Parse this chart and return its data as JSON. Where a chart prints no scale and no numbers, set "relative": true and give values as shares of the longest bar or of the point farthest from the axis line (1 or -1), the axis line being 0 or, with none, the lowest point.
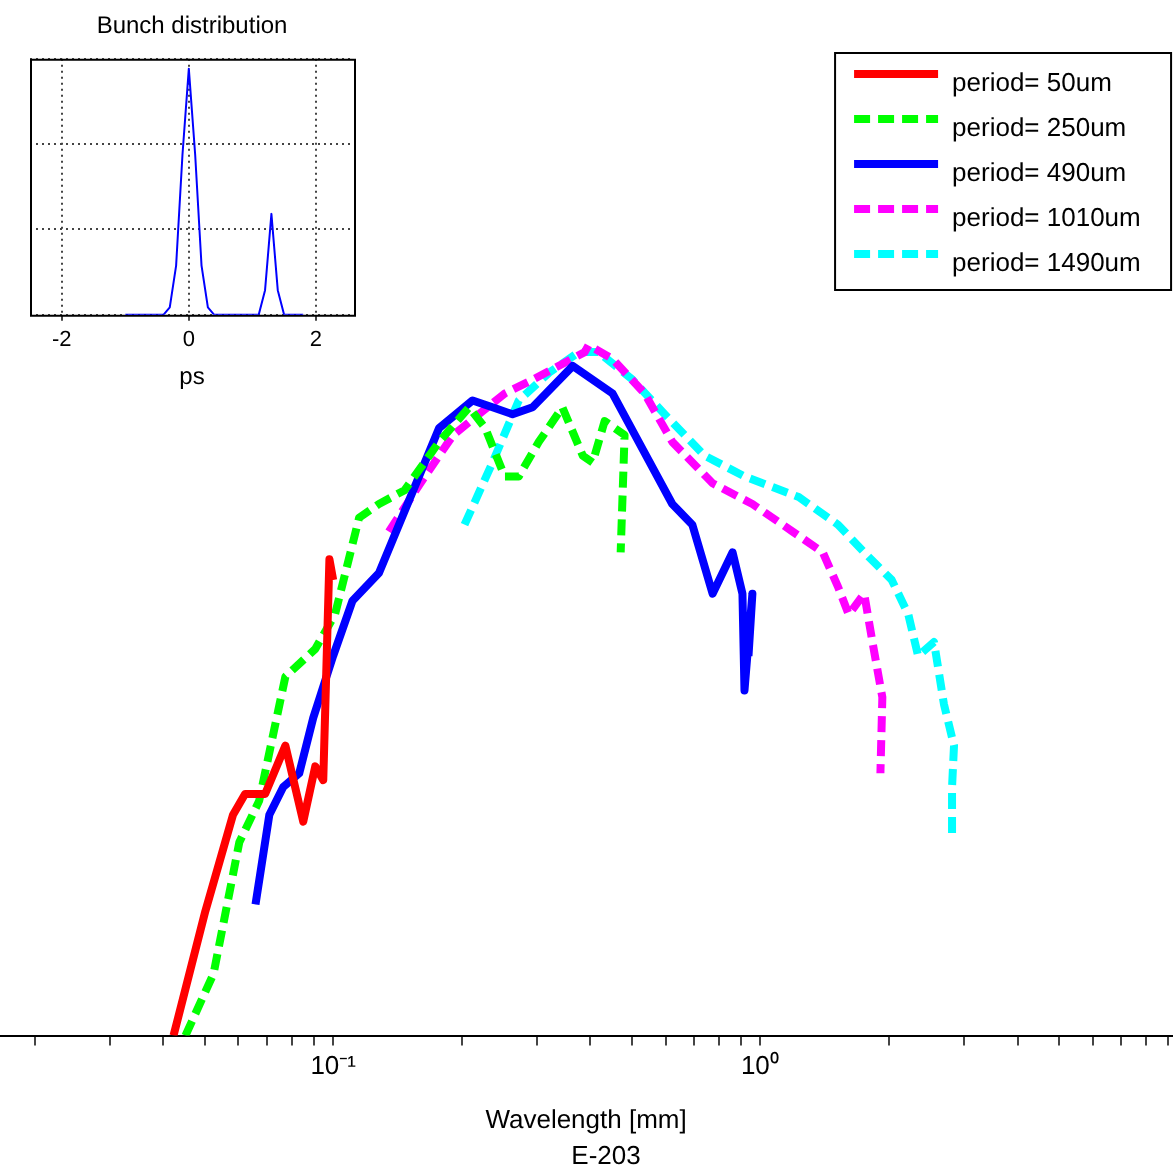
{
  "chart_data": [
    {
      "type": "line",
      "title": "Bunch distribution",
      "xlabel": "ps",
      "relative": true,
      "grid": true,
      "xlim": [
        -2.5,
        2.6
      ],
      "xticks": [
        -2,
        0,
        2
      ],
      "x": [
        -1,
        -0.4,
        -0.3,
        -0.2,
        -0.1,
        0,
        0.1,
        0.2,
        0.3,
        0.4,
        1.1,
        1.2,
        1.3,
        1.4,
        1.5,
        1.8
      ],
      "series": [
        {
          "color": "#0000ff",
          "values": [
            0,
            0,
            0.03,
            0.2,
            0.65,
            1,
            0.65,
            0.2,
            0.03,
            0,
            0,
            0.1,
            0.41,
            0.1,
            0,
            0
          ]
        }
      ]
    },
    {
      "type": "line",
      "xlabel": "Wavelength [mm]",
      "annotations": [
        "E-203"
      ],
      "log": "x",
      "relative": true,
      "legend": "top right",
      "xlim": [
        0.0166,
        9.2
      ],
      "xticks": [
        {
          "value": 0.02,
          "label": null
        },
        {
          "value": 0.03,
          "label": null
        },
        {
          "value": 0.04,
          "label": null
        },
        {
          "value": 0.05,
          "label": null
        },
        {
          "value": 0.06,
          "label": null
        },
        {
          "value": 0.07,
          "label": null
        },
        {
          "value": 0.08,
          "label": null
        },
        {
          "value": 0.09,
          "label": null
        },
        {
          "value": 0.1,
          "label": "10⁻¹"
        },
        {
          "value": 0.2,
          "label": null
        },
        {
          "value": 0.3,
          "label": null
        },
        {
          "value": 0.4,
          "label": null
        },
        {
          "value": 0.5,
          "label": null
        },
        {
          "value": 0.6,
          "label": null
        },
        {
          "value": 0.7,
          "label": null
        },
        {
          "value": 0.8,
          "label": null
        },
        {
          "value": 0.9,
          "label": null
        },
        {
          "value": 1,
          "label": "10⁰"
        },
        {
          "value": 2,
          "label": null
        },
        {
          "value": 3,
          "label": null
        },
        {
          "value": 4,
          "label": null
        },
        {
          "value": 5,
          "label": null
        },
        {
          "value": 6,
          "label": null
        },
        {
          "value": 7,
          "label": null
        },
        {
          "value": 8,
          "label": null
        },
        {
          "value": 9,
          "label": null
        }
      ],
      "series": [
        {
          "name": "period= 50um",
          "color": "#ff0000",
          "line_style": "solid",
          "x": [
            0.0423,
            0.0502,
            0.0583,
            0.0622,
            0.0693,
            0.0773,
            0.0851,
            0.0908,
            0.0948,
            0.098,
            0.1
          ],
          "values": [
            0,
            0.18,
            0.32,
            0.35,
            0.35,
            0.42,
            0.31,
            0.39,
            0.37,
            0.69,
            0.66
          ]
        },
        {
          "name": "period= 250um",
          "color": "#00ff00",
          "line_style": "dashed",
          "x": [
            0.0451,
            0.0525,
            0.0603,
            0.0671,
            0.0773,
            0.0908,
            0.101,
            0.115,
            0.128,
            0.147,
            0.177,
            0.208,
            0.227,
            0.252,
            0.272,
            0.303,
            0.344,
            0.384,
            0.405,
            0.432,
            0.481,
            0.471
          ],
          "values": [
            0,
            0.09,
            0.28,
            0.34,
            0.52,
            0.56,
            0.61,
            0.75,
            0.77,
            0.79,
            0.86,
            0.91,
            0.88,
            0.81,
            0.81,
            0.86,
            0.91,
            0.84,
            0.83,
            0.89,
            0.87,
            0.7
          ]
        },
        {
          "name": "period= 490um",
          "color": "#0000ff",
          "line_style": "solid",
          "x": [
            0.0658,
            0.0709,
            0.0764,
            0.0833,
            0.0898,
            0.1,
            0.111,
            0.128,
            0.154,
            0.177,
            0.212,
            0.236,
            0.263,
            0.293,
            0.364,
            0.451,
            0.519,
            0.622,
            0.693,
            0.773,
            0.861,
            0.908,
            0.918,
            0.958,
            0.938
          ],
          "values": [
            0.19,
            0.32,
            0.36,
            0.38,
            0.46,
            0.55,
            0.63,
            0.67,
            0.79,
            0.88,
            0.92,
            0.91,
            0.9,
            0.91,
            0.97,
            0.93,
            0.86,
            0.77,
            0.74,
            0.64,
            0.7,
            0.64,
            0.5,
            0.64,
            0.55
          ]
        },
        {
          "name": "period= 1010um",
          "color": "#ff00ff",
          "line_style": "dashed",
          "x": [
            0.135,
            0.164,
            0.191,
            0.252,
            0.293,
            0.388,
            0.396,
            0.451,
            0.536,
            0.622,
            0.773,
            0.958,
            1.19,
            1.4,
            1.52,
            1.61,
            1.75,
            1.83,
            1.93,
            1.91
          ],
          "values": [
            0.73,
            0.81,
            0.87,
            0.93,
            0.95,
            0.99,
            1,
            0.98,
            0.93,
            0.86,
            0.8,
            0.77,
            0.73,
            0.7,
            0.65,
            0.61,
            0.64,
            0.57,
            0.49,
            0.38
          ]
        },
        {
          "name": "period= 1490um",
          "color": "#00ffff",
          "line_style": "dashed",
          "x": [
            0.203,
            0.236,
            0.272,
            0.32,
            0.376,
            0.418,
            0.502,
            0.597,
            0.74,
            0.918,
            1.23,
            1.52,
            1.75,
            2.03,
            2.22,
            2.34,
            2.55,
            2.69,
            2.84,
            2.81,
            2.81
          ],
          "values": [
            0.74,
            0.83,
            0.92,
            0.96,
            0.99,
            0.99,
            0.95,
            0.9,
            0.84,
            0.81,
            0.78,
            0.74,
            0.7,
            0.66,
            0.61,
            0.55,
            0.57,
            0.48,
            0.42,
            0.36,
            0.29
          ]
        }
      ]
    }
  ]
}
